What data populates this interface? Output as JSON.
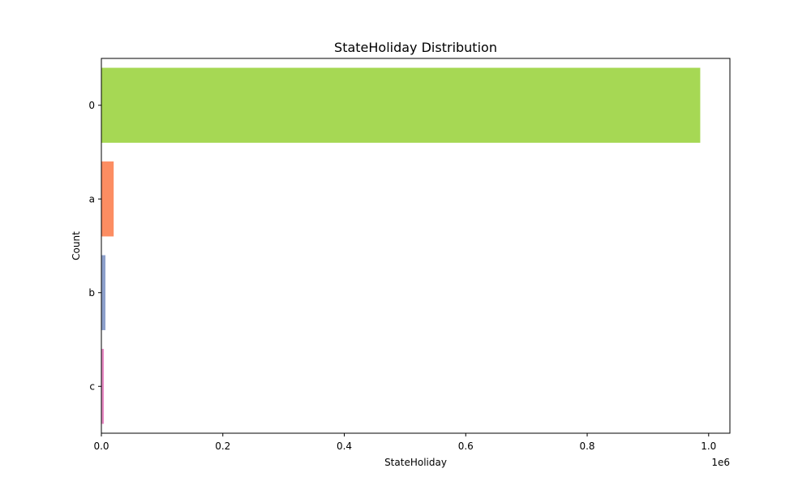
{
  "chart_data": {
    "type": "bar",
    "orientation": "horizontal",
    "title": "StateHoliday Distribution",
    "xlabel": "StateHoliday",
    "ylabel": "Count",
    "x_scale_label": "1e6",
    "xlim": [
      0,
      1.035
    ],
    "x_ticks": [
      0.0,
      0.2,
      0.4,
      0.6,
      0.8,
      1.0
    ],
    "x_tick_labels": [
      "0.0",
      "0.2",
      "0.4",
      "0.6",
      "0.8",
      "1.0"
    ],
    "grid": false,
    "legend": "none",
    "categories": [
      "0",
      "a",
      "b",
      "c"
    ],
    "values": [
      986159,
      20260,
      6690,
      4100
    ],
    "colors": [
      "#a6d854",
      "#fc8d62",
      "#8da0cb",
      "#e78ac3"
    ]
  }
}
